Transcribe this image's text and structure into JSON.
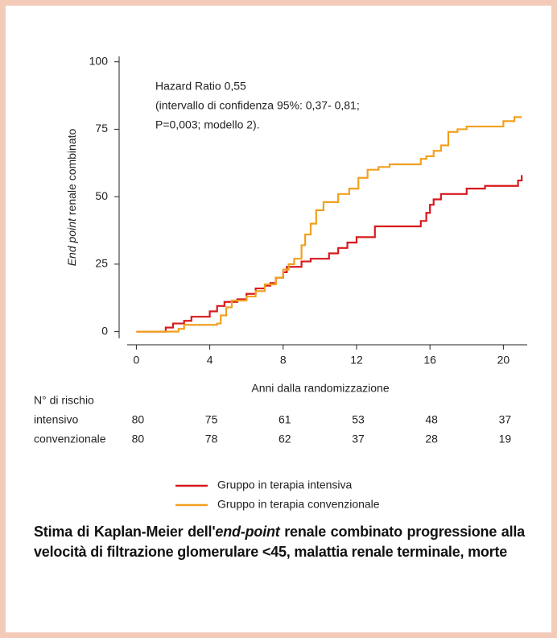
{
  "chart_data": {
    "type": "step",
    "ylabel": [
      "End point",
      "renale combinato"
    ],
    "xlabel": "Anni dalla randomizzazione",
    "annotation": [
      "Hazard Ratio 0,55",
      "(intervallo di confidenza 95%: 0,37- 0,81;",
      "P=0,003; modello 2)."
    ],
    "xlim": [
      -0.5,
      21.3
    ],
    "ylim": [
      -2.5,
      102
    ],
    "xticks": [
      0,
      4,
      8,
      12,
      16,
      20
    ],
    "yticks": [
      0,
      25,
      50,
      75,
      100
    ],
    "series": [
      {
        "name": "Gruppo in terapia intensiva",
        "color": "#d7191c",
        "x": [
          0,
          1.6,
          2,
          2.6,
          3,
          4,
          4.4,
          4.8,
          5.5,
          6,
          6.5,
          7,
          7.3,
          7.6,
          8,
          8.2,
          9,
          9.5,
          10.5,
          11,
          11.5,
          12,
          13,
          15.5,
          15.8,
          16,
          16.2,
          16.6,
          18,
          19,
          20.8,
          21
        ],
        "y": [
          0,
          1.5,
          3,
          4,
          5.5,
          7.5,
          9.5,
          11,
          12,
          14,
          16,
          17,
          18,
          20,
          22,
          24,
          26,
          27,
          29,
          31,
          33,
          35,
          39,
          41,
          44,
          47,
          49,
          51,
          53,
          54,
          56,
          58
        ]
      },
      {
        "name": "Gruppo in terapia convenzionale",
        "color": "#f0a020",
        "x": [
          0,
          2.3,
          2.6,
          4.4,
          4.6,
          4.9,
          5.2,
          6,
          6.5,
          7,
          7.6,
          8,
          8.3,
          8.6,
          9,
          9.2,
          9.5,
          9.8,
          10.2,
          11,
          11.6,
          12.1,
          12.6,
          13.2,
          13.8,
          15.5,
          15.8,
          16.2,
          16.6,
          17,
          17.5,
          18,
          20,
          20.6,
          21
        ],
        "y": [
          0,
          1,
          2.5,
          3,
          6,
          9,
          11.5,
          13,
          15,
          17.5,
          20,
          23,
          25,
          27,
          32,
          36,
          40,
          45,
          48,
          51,
          53,
          57,
          60,
          61,
          62,
          64,
          65,
          67,
          69,
          74,
          75,
          76,
          78,
          79.5,
          79.5
        ]
      }
    ],
    "risk_table": {
      "title": "N° di rischio",
      "rows": [
        {
          "label": "intensivo",
          "values": [
            80,
            75,
            61,
            53,
            48,
            37
          ]
        },
        {
          "label": "convenzionale",
          "values": [
            80,
            78,
            62,
            37,
            28,
            19
          ]
        }
      ]
    },
    "caption": [
      "Stima di Kaplan-Meier dell'",
      "end-point",
      "renale combinato progressione alla velocità di filtrazione glomerulare <45, malattia renale terminale, morte"
    ]
  }
}
